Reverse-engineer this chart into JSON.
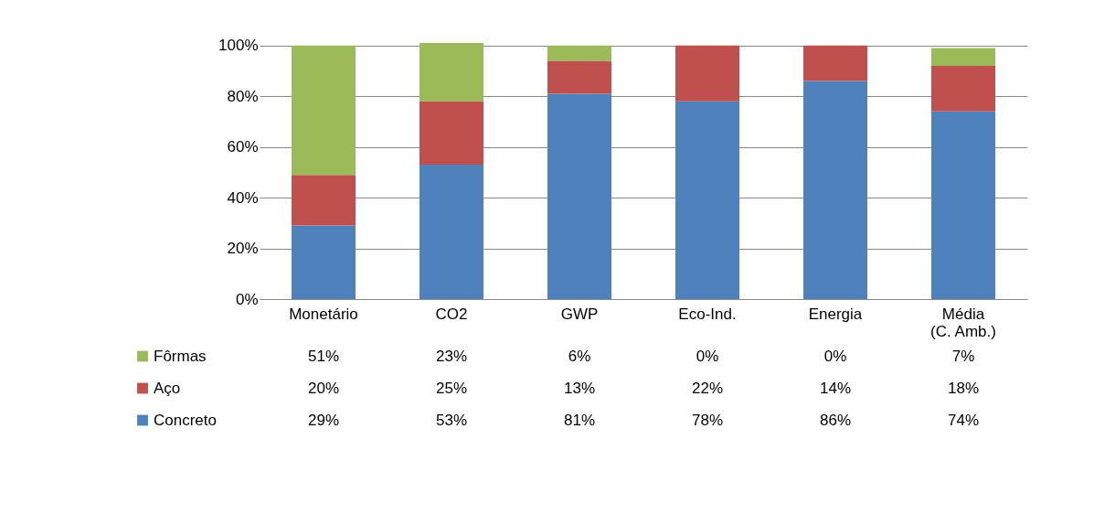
{
  "chart_data": {
    "type": "bar",
    "stacked": true,
    "categories": [
      "Monetário",
      "CO2",
      "GWP",
      "Eco-Ind.",
      "Energia",
      "Média (C. Amb.)"
    ],
    "series": [
      {
        "name": "Concreto",
        "color": "#4f81bd",
        "values": [
          29,
          53,
          81,
          78,
          86,
          74
        ],
        "value_labels": [
          "29%",
          "53%",
          "81%",
          "78%",
          "86%",
          "74%"
        ]
      },
      {
        "name": "Aço",
        "color": "#c0504d",
        "values": [
          20,
          25,
          13,
          22,
          14,
          18
        ],
        "value_labels": [
          "20%",
          "25%",
          "13%",
          "22%",
          "14%",
          "18%"
        ]
      },
      {
        "name": "Fôrmas",
        "color": "#9bbb59",
        "values": [
          51,
          23,
          6,
          0,
          0,
          7
        ],
        "value_labels": [
          "51%",
          "23%",
          "6%",
          "0%",
          "0%",
          "7%"
        ]
      }
    ],
    "ylim": [
      0,
      101
    ],
    "yticks": [
      {
        "value": 0,
        "label": "0%"
      },
      {
        "value": 20,
        "label": "20%"
      },
      {
        "value": 40,
        "label": "40%"
      },
      {
        "value": 60,
        "label": "60%"
      },
      {
        "value": 80,
        "label": "80%"
      },
      {
        "value": 100,
        "label": "100%"
      }
    ],
    "grid": "y",
    "legend": "bottom"
  }
}
